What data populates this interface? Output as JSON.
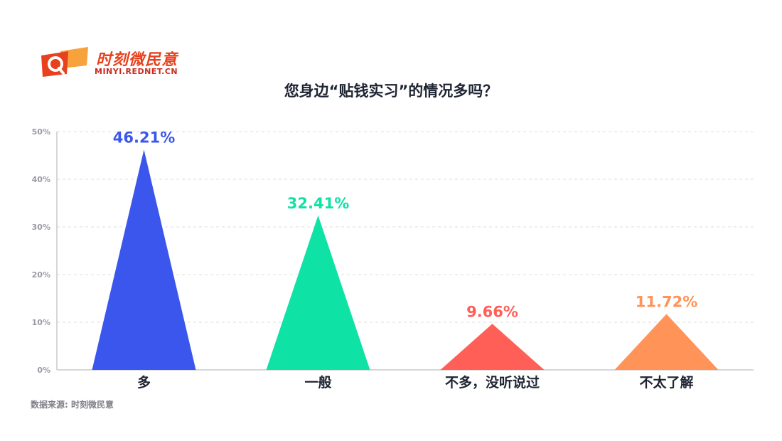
{
  "header": {
    "logo_title": "时刻微民意",
    "logo_url": "MINYI.REDNET.CN"
  },
  "footer": {
    "source": "数据来源: 时刻微民意"
  },
  "colors": {
    "logo_red": "#e8411e",
    "logo_orange": "#f7a23a",
    "grid": "#dddddd",
    "axis_text": "#9a9aa4"
  },
  "chart_data": {
    "type": "bar",
    "style": "triangle-peaks",
    "title": "您身边“贴钱实习”的情况多吗？",
    "categories": [
      "多",
      "一般",
      "不多，没听说过",
      "不太了解"
    ],
    "values": [
      46.21,
      32.41,
      9.66,
      11.72
    ],
    "value_labels": [
      "46.21%",
      "32.41%",
      "9.66%",
      "11.72%"
    ],
    "colors": [
      "#3a56ec",
      "#0ee2a4",
      "#ff5f57",
      "#ff9358"
    ],
    "ylim": [
      0,
      50
    ],
    "yticks": [
      "0%",
      "10%",
      "20%",
      "30%",
      "40%",
      "50%"
    ],
    "grid": true,
    "legend": "none"
  }
}
